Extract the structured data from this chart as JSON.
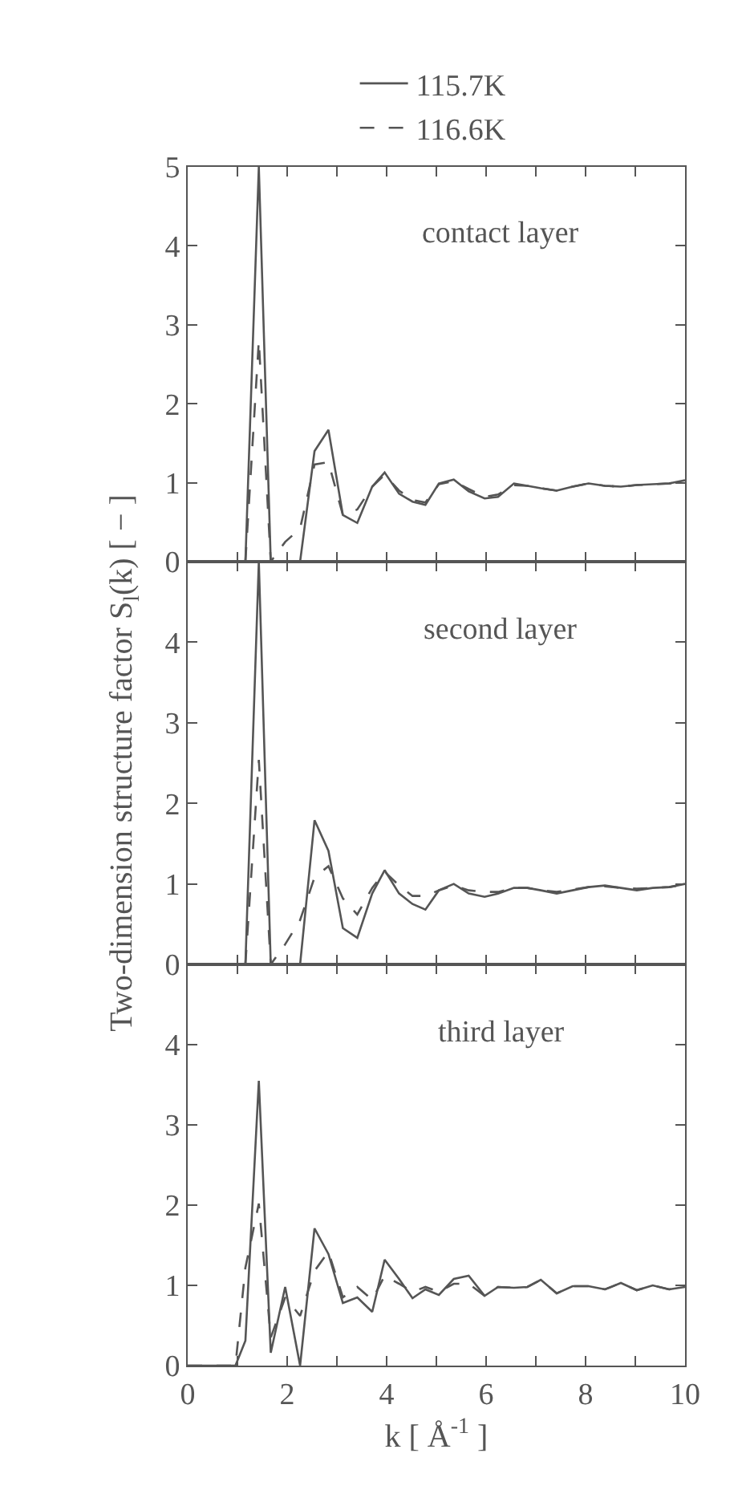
{
  "chart_data": [
    {
      "type": "line",
      "annotations": [
        "contact layer"
      ],
      "legend": "top",
      "tick_labels": "y",
      "grid": false,
      "marker": "none",
      "x": [
        0,
        1.16,
        1.43,
        1.67,
        1.96,
        2.26,
        2.55,
        2.83,
        3.12,
        3.41,
        3.71,
        3.96,
        4.25,
        4.52,
        4.78,
        5.05,
        5.35,
        5.65,
        5.97,
        6.24,
        6.56,
        6.83,
        7.1,
        7.42,
        7.74,
        8.06,
        8.39,
        8.71,
        9.03,
        9.35,
        9.68,
        10
      ],
      "series": [
        {
          "name": "115.7K",
          "color": "#555555",
          "line_style": "solid",
          "values": [
            0,
            0,
            5,
            0,
            0,
            0,
            1.4,
            1.67,
            0.59,
            0.49,
            0.95,
            1.13,
            0.86,
            0.76,
            0.72,
            0.99,
            1.04,
            0.89,
            0.8,
            0.82,
            0.99,
            0.96,
            0.93,
            0.9,
            0.95,
            0.99,
            0.96,
            0.95,
            0.97,
            0.98,
            0.99,
            1.03
          ]
        },
        {
          "name": "116.6K",
          "color": "#555555",
          "line_style": "dashed",
          "values": [
            0,
            0,
            2.8,
            0,
            0.25,
            0.42,
            1.23,
            1.26,
            0.59,
            0.66,
            0.95,
            1.1,
            0.9,
            0.78,
            0.75,
            0.98,
            1.02,
            0.92,
            0.82,
            0.85,
            0.97,
            0.96,
            0.93,
            0.9,
            0.95,
            0.99,
            0.96,
            0.95,
            0.97,
            0.98,
            0.99,
            1.02
          ]
        }
      ],
      "xlim": [
        0,
        10
      ],
      "xticks": [
        0,
        {
          "value": 1,
          "label": null
        },
        2,
        {
          "value": 3,
          "label": null
        },
        4,
        {
          "value": 5,
          "label": null
        },
        6,
        {
          "value": 7,
          "label": null
        },
        8,
        {
          "value": 9,
          "label": null
        },
        10
      ],
      "ylim": [
        0,
        5
      ],
      "yticks": [
        0,
        1,
        2,
        3,
        4,
        5
      ]
    },
    {
      "type": "line",
      "annotations": [
        "second layer"
      ],
      "ylabel": "Two-dimension structure factor S$_{l}$(k) [ − ]",
      "tick_labels": "y",
      "grid": false,
      "marker": "none",
      "x": [
        0,
        1.16,
        1.43,
        1.67,
        1.96,
        2.26,
        2.55,
        2.83,
        3.12,
        3.41,
        3.71,
        3.96,
        4.25,
        4.52,
        4.78,
        5.05,
        5.35,
        5.65,
        5.97,
        6.24,
        6.56,
        6.83,
        7.1,
        7.42,
        7.74,
        8.06,
        8.39,
        8.71,
        9.03,
        9.35,
        9.68,
        10
      ],
      "series": [
        {
          "color": "#555555",
          "line_style": "solid",
          "values": [
            0,
            0,
            5,
            0,
            0,
            0,
            1.79,
            1.41,
            0.45,
            0.33,
            0.88,
            1.17,
            0.88,
            0.75,
            0.68,
            0.92,
            1.0,
            0.88,
            0.84,
            0.88,
            0.95,
            0.95,
            0.92,
            0.88,
            0.92,
            0.96,
            0.98,
            0.95,
            0.92,
            0.95,
            0.96,
            1.0
          ]
        },
        {
          "color": "#555555",
          "line_style": "dashed",
          "values": [
            0,
            0,
            2.54,
            0,
            0.25,
            0.55,
            1.08,
            1.22,
            0.82,
            0.62,
            0.95,
            1.15,
            0.98,
            0.85,
            0.85,
            0.92,
            0.98,
            0.92,
            0.9,
            0.9,
            0.95,
            0.95,
            0.92,
            0.9,
            0.93,
            0.96,
            0.97,
            0.95,
            0.94,
            0.95,
            0.96,
            0.99
          ]
        }
      ],
      "xlim": [
        0,
        10
      ],
      "xticks": [
        0,
        {
          "value": 1,
          "label": null
        },
        2,
        {
          "value": 3,
          "label": null
        },
        4,
        {
          "value": 5,
          "label": null
        },
        6,
        {
          "value": 7,
          "label": null
        },
        8,
        {
          "value": 9,
          "label": null
        },
        10
      ],
      "ylim": [
        0,
        5
      ],
      "yticks": [
        0,
        1,
        2,
        3,
        4
      ]
    },
    {
      "type": "line",
      "annotations": [
        "third layer"
      ],
      "xlabel": "k [ Å$^{-1}$ ]",
      "grid": false,
      "marker": "none",
      "x": [
        0,
        0.96,
        1.16,
        1.43,
        1.67,
        1.96,
        2.26,
        2.55,
        2.83,
        3.12,
        3.41,
        3.71,
        3.96,
        4.25,
        4.52,
        4.78,
        5.05,
        5.35,
        5.65,
        5.97,
        6.24,
        6.56,
        6.83,
        7.1,
        7.42,
        7.74,
        8.06,
        8.39,
        8.71,
        9.03,
        9.35,
        9.68,
        10
      ],
      "series": [
        {
          "color": "#555555",
          "line_style": "solid",
          "values": [
            0,
            0,
            0.31,
            3.55,
            0.16,
            0.98,
            0,
            1.71,
            1.39,
            0.78,
            0.85,
            0.67,
            1.32,
            1.08,
            0.84,
            0.95,
            0.88,
            1.08,
            1.12,
            0.87,
            0.98,
            0.97,
            0.98,
            1.07,
            0.9,
            0.99,
            0.99,
            0.95,
            1.03,
            0.94,
            1.0,
            0.95,
            0.98
          ]
        },
        {
          "color": "#555555",
          "line_style": "dashed",
          "values": [
            0,
            0,
            1.22,
            2.02,
            0.35,
            0.85,
            0.62,
            1.18,
            1.42,
            0.85,
            0.98,
            0.82,
            1.12,
            1.02,
            0.92,
            0.98,
            0.92,
            1.02,
            1.02,
            0.87,
            0.98,
            0.97,
            0.98,
            1.07,
            0.9,
            0.99,
            0.99,
            0.95,
            1.03,
            0.94,
            1.0,
            0.95,
            0.98
          ]
        }
      ],
      "xlim": [
        0,
        10
      ],
      "xticks": [
        0,
        {
          "value": 1,
          "label": null
        },
        2,
        {
          "value": 3,
          "label": null
        },
        4,
        {
          "value": 5,
          "label": null
        },
        6,
        {
          "value": 7,
          "label": null
        },
        8,
        {
          "value": 9,
          "label": null
        },
        10
      ],
      "ylim": [
        0,
        5
      ],
      "yticks": [
        0,
        1,
        2,
        3,
        4
      ]
    }
  ]
}
